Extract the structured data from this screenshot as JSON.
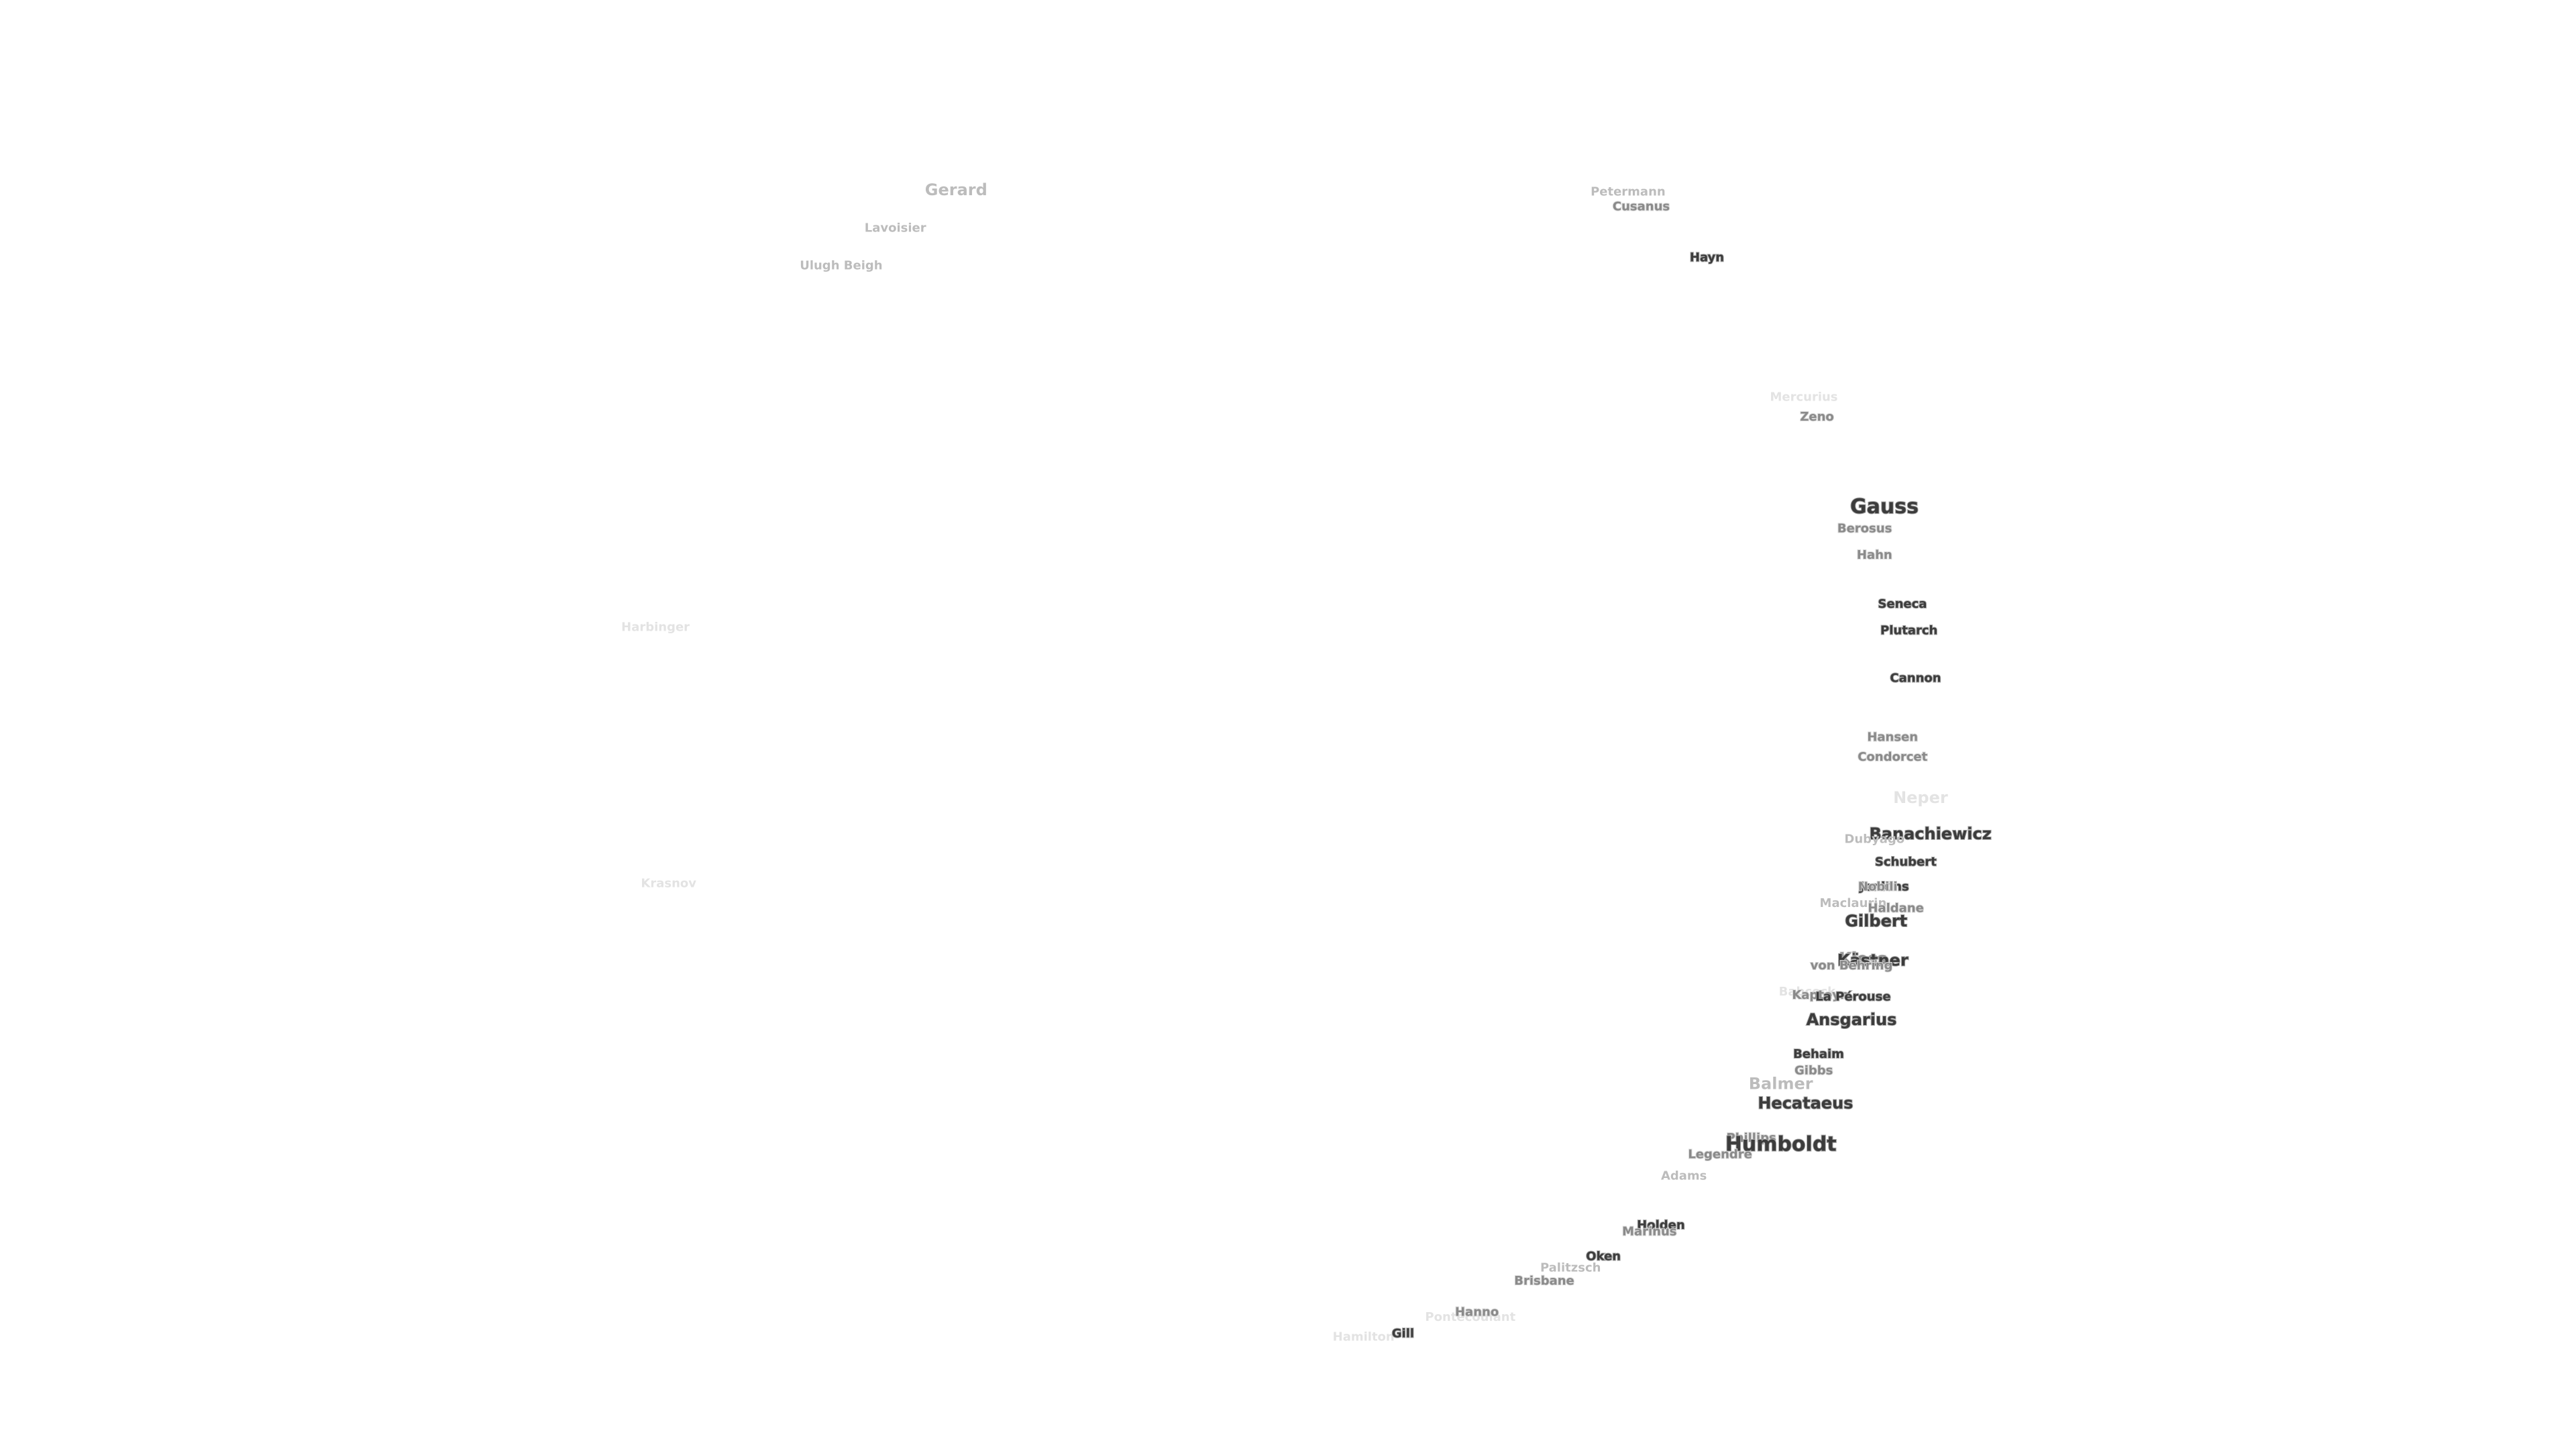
{
  "map": {
    "labels": [
      "Gerard",
      "Lavoisier",
      "Ulugh Beigh",
      "Petermann",
      "Cusanus",
      "Hayn",
      "Mercurius",
      "Zeno",
      "Gauss",
      "Berosus",
      "Hahn",
      "Seneca",
      "Plutarch",
      "Cannon",
      "Hansen",
      "Condorcet",
      "Harbinger",
      "Krasnov",
      "Neper",
      "Banachiewicz",
      "Dubyago",
      "Schubert",
      "Jenkins",
      "Nobili",
      "Maclaurin",
      "Haldane",
      "Gilbert",
      "Kiess",
      "Kästner",
      "von Behring",
      "Babcock",
      "Kapteyn",
      "La Pérouse",
      "Ansgarius",
      "Behaim",
      "Gibbs",
      "Balmer",
      "Hecataeus",
      "Phillips",
      "Humboldt",
      "Legendre",
      "Adams",
      "Holden",
      "Marinus",
      "Oken",
      "Palitzsch",
      "Brisbane",
      "Pontecoulant",
      "Hanno",
      "Hamilton",
      "Gill"
    ]
  }
}
